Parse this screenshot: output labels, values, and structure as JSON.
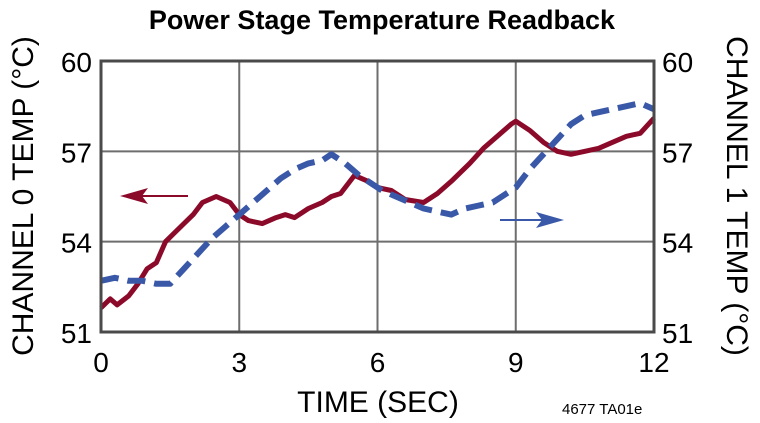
{
  "chart_data": {
    "type": "line",
    "title": "Power Stage Temperature Readback",
    "xlabel": "TIME (SEC)",
    "ylabel_left": "CHANNEL 0 TEMP (°C)",
    "ylabel_right": "CHANNEL 1 TEMP (°C)",
    "xlim": [
      0,
      12
    ],
    "ylim_left": [
      51,
      60
    ],
    "ylim_right": [
      51,
      60
    ],
    "x_ticks": [
      "0",
      "3",
      "6",
      "9",
      "12"
    ],
    "y_ticks_left": [
      "51",
      "54",
      "57",
      "60"
    ],
    "y_ticks_right": [
      "51",
      "54",
      "57",
      "60"
    ],
    "grid": true,
    "annotation": "4677 TA01e",
    "series": [
      {
        "name": "Channel 0",
        "axis": "left",
        "style": "solid",
        "color": "#8b0a2a",
        "x": [
          0,
          0.2,
          0.35,
          0.6,
          0.8,
          1.0,
          1.2,
          1.4,
          1.6,
          1.8,
          2.0,
          2.2,
          2.5,
          2.8,
          3.0,
          3.2,
          3.5,
          3.8,
          4.0,
          4.2,
          4.5,
          4.8,
          5.0,
          5.2,
          5.5,
          5.8,
          6.0,
          6.3,
          6.6,
          7.0,
          7.3,
          7.6,
          8.0,
          8.3,
          8.6,
          8.9,
          9.0,
          9.3,
          9.6,
          9.9,
          10.2,
          10.5,
          10.8,
          11.1,
          11.4,
          11.7,
          12.0
        ],
        "values": [
          51.8,
          52.1,
          51.9,
          52.2,
          52.6,
          53.1,
          53.3,
          54.0,
          54.3,
          54.6,
          54.9,
          55.3,
          55.5,
          55.3,
          54.9,
          54.7,
          54.6,
          54.8,
          54.9,
          54.8,
          55.1,
          55.3,
          55.5,
          55.6,
          56.2,
          56.0,
          55.8,
          55.7,
          55.4,
          55.3,
          55.6,
          56.0,
          56.6,
          57.1,
          57.5,
          57.9,
          58.0,
          57.7,
          57.3,
          57.0,
          56.9,
          57.0,
          57.1,
          57.3,
          57.5,
          57.6,
          58.1
        ]
      },
      {
        "name": "Channel 1",
        "axis": "right",
        "style": "dashed",
        "color": "#3a58a8",
        "x": [
          0,
          0.3,
          0.6,
          0.9,
          1.2,
          1.5,
          1.8,
          2.1,
          2.4,
          2.7,
          3.0,
          3.3,
          3.6,
          3.9,
          4.2,
          4.5,
          4.8,
          5.0,
          5.3,
          5.6,
          5.9,
          6.1,
          6.4,
          6.7,
          7.0,
          7.3,
          7.6,
          7.9,
          8.2,
          8.5,
          8.8,
          9.0,
          9.3,
          9.6,
          9.9,
          10.2,
          10.5,
          10.8,
          11.1,
          11.4,
          11.7,
          12.0
        ],
        "values": [
          52.7,
          52.8,
          52.7,
          52.7,
          52.6,
          52.6,
          53.1,
          53.6,
          54.1,
          54.5,
          54.9,
          55.3,
          55.7,
          56.1,
          56.4,
          56.6,
          56.7,
          56.9,
          56.6,
          56.2,
          55.9,
          55.7,
          55.5,
          55.3,
          55.1,
          55.0,
          54.9,
          55.1,
          55.2,
          55.3,
          55.6,
          55.8,
          56.4,
          56.9,
          57.4,
          57.9,
          58.2,
          58.3,
          58.4,
          58.5,
          58.6,
          58.4
        ]
      }
    ]
  },
  "labels": {
    "title": "Power Stage Temperature Readback",
    "xlabel": "TIME (SEC)",
    "ylabel_left": "CHANNEL 0 TEMP (°C)",
    "ylabel_right": "CHANNEL 1 TEMP (°C)",
    "annotation": "4677 TA01e",
    "x_ticks": [
      "0",
      "3",
      "6",
      "9",
      "12"
    ],
    "y_ticks_left": [
      "60",
      "57",
      "54",
      "51"
    ],
    "y_ticks_right": [
      "60",
      "57",
      "54",
      "51"
    ]
  },
  "colors": {
    "channel0": "#8b0a2a",
    "channel1": "#3a58a8",
    "grid": "#6e6e6e",
    "frame": "#4a4a4a"
  },
  "legend_arrows": [
    {
      "series": "Channel 0",
      "direction": "left",
      "meaning": "left axis"
    },
    {
      "series": "Channel 1",
      "direction": "right",
      "meaning": "right axis"
    }
  ]
}
